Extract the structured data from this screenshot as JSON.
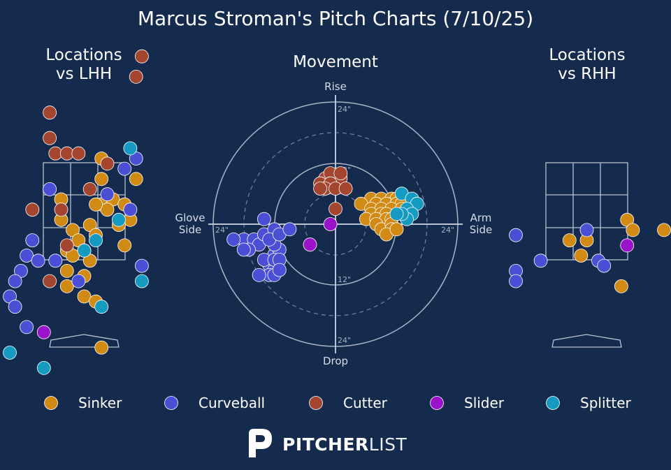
{
  "title": "Marcus Stroman's Pitch Charts (7/10/25)",
  "panels": {
    "lhh_title": "Locations\nvs LHH",
    "movement_title": "Movement",
    "rhh_title": "Locations\nvs RHH"
  },
  "movement_axes": {
    "rise": "Rise",
    "drop": "Drop",
    "glove": "Glove\nSide",
    "arm": "Arm\nSide",
    "ring_labels": {
      "top_outer": "24\"",
      "top_inner": "12\"",
      "bottom_inner": "12\"",
      "bottom_outer": "24\"",
      "left_outer": "24\"",
      "right_outer": "24\""
    }
  },
  "colors": {
    "background": "#152b4d",
    "Sinker": "#d18a14",
    "Curveball": "#4a4fd6",
    "Cutter": "#a3452f",
    "Slider": "#9a12c9",
    "Splitter": "#159bc2"
  },
  "legend": [
    "Sinker",
    "Curveball",
    "Cutter",
    "Slider",
    "Splitter"
  ],
  "brand": {
    "bold": "PITCHER",
    "light": "LIST"
  },
  "chart_data": [
    {
      "type": "scatter",
      "panel": "Locations vs LHH",
      "series": [
        {
          "name": "Sinker",
          "points": [
            [
              -0.4,
              2.6
            ],
            [
              -0.2,
              2.4
            ],
            [
              0.1,
              2.5
            ],
            [
              -0.1,
              2.2
            ],
            [
              0.2,
              2.3
            ],
            [
              -0.3,
              2.0
            ],
            [
              0.0,
              2.0
            ],
            [
              -0.2,
              1.9
            ],
            [
              0.1,
              1.8
            ],
            [
              -0.3,
              1.6
            ],
            [
              0.0,
              1.5
            ],
            [
              -0.3,
              1.3
            ],
            [
              0.0,
              1.1
            ],
            [
              0.3,
              2.9
            ],
            [
              0.5,
              3.0
            ],
            [
              0.7,
              2.9
            ],
            [
              0.8,
              2.6
            ],
            [
              0.6,
              2.5
            ],
            [
              0.7,
              2.1
            ],
            [
              0.4,
              2.8
            ],
            [
              0.2,
              2.9
            ],
            [
              0.9,
              3.4
            ],
            [
              0.3,
              3.4
            ],
            [
              0.3,
              3.8
            ],
            [
              -0.4,
              3.0
            ],
            [
              0.2,
              1.0
            ],
            [
              0.3,
              0.1
            ]
          ]
        },
        {
          "name": "Curveball",
          "points": [
            [
              -0.6,
              3.2
            ],
            [
              -0.9,
              2.2
            ],
            [
              -1.0,
              1.9
            ],
            [
              -0.8,
              1.8
            ],
            [
              -1.1,
              1.6
            ],
            [
              -0.5,
              1.8
            ],
            [
              -1.2,
              1.4
            ],
            [
              -1.4,
              1.1
            ],
            [
              -1.2,
              0.9
            ],
            [
              -1.0,
              0.5
            ],
            [
              -0.1,
              1.4
            ],
            [
              0.4,
              3.1
            ],
            [
              0.7,
              3.6
            ],
            [
              0.9,
              3.8
            ],
            [
              0.8,
              2.8
            ],
            [
              1.0,
              1.7
            ]
          ]
        },
        {
          "name": "Cutter",
          "points": [
            [
              -0.6,
              4.7
            ],
            [
              -0.6,
              4.2
            ],
            [
              -0.5,
              3.9
            ],
            [
              -0.3,
              3.9
            ],
            [
              -0.1,
              3.9
            ],
            [
              0.4,
              3.7
            ],
            [
              -0.9,
              2.8
            ],
            [
              -0.4,
              2.8
            ],
            [
              -0.3,
              2.1
            ],
            [
              0.1,
              3.2
            ],
            [
              0.9,
              5.4
            ],
            [
              1.0,
              5.8
            ],
            [
              -0.6,
              1.4
            ]
          ]
        },
        {
          "name": "Slider",
          "points": [
            [
              -0.7,
              0.4
            ]
          ]
        },
        {
          "name": "Splitter",
          "points": [
            [
              0.0,
              2.0
            ],
            [
              0.2,
              2.2
            ],
            [
              0.6,
              2.6
            ],
            [
              0.8,
              4.0
            ],
            [
              1.0,
              1.4
            ],
            [
              0.3,
              0.9
            ],
            [
              -0.7,
              -0.3
            ],
            [
              -1.8,
              0.0
            ]
          ]
        }
      ]
    },
    {
      "type": "scatter",
      "panel": "Movement",
      "xlabel": "Glove Side / Arm Side",
      "ylabel": "Drop / Rise",
      "series": [
        {
          "name": "Sinker",
          "points": [
            [
              7,
              5
            ],
            [
              9,
              5
            ],
            [
              11,
              5
            ],
            [
              12,
              5
            ],
            [
              8,
              4
            ],
            [
              10,
              4
            ],
            [
              12,
              4
            ],
            [
              13,
              4
            ],
            [
              5,
              4
            ],
            [
              7,
              3
            ],
            [
              9,
              3
            ],
            [
              11,
              3
            ],
            [
              13,
              3
            ],
            [
              7,
              2
            ],
            [
              9,
              2
            ],
            [
              10,
              2
            ],
            [
              12,
              2
            ],
            [
              6,
              1
            ],
            [
              8,
              1
            ],
            [
              10,
              1
            ],
            [
              11,
              1
            ],
            [
              8,
              0
            ],
            [
              9,
              -1
            ],
            [
              11,
              0
            ],
            [
              11,
              -1
            ],
            [
              10,
              -2
            ],
            [
              12,
              -1
            ]
          ]
        },
        {
          "name": "Curveball",
          "points": [
            [
              -14,
              1
            ],
            [
              -18,
              -3
            ],
            [
              -20,
              -3
            ],
            [
              -16,
              -3
            ],
            [
              -15,
              -4
            ],
            [
              -17,
              -5
            ],
            [
              -18,
              -5
            ],
            [
              -14,
              -2
            ],
            [
              -12,
              -1
            ],
            [
              -12,
              -6
            ],
            [
              -13,
              -8
            ],
            [
              -12,
              -9
            ],
            [
              -14,
              -7
            ],
            [
              -11,
              -5
            ],
            [
              -12,
              -4
            ],
            [
              -13,
              -3
            ],
            [
              -11,
              -2
            ],
            [
              -9,
              -1
            ],
            [
              -13,
              -10
            ],
            [
              -12,
              -10
            ],
            [
              -15,
              -10
            ],
            [
              -12,
              -7
            ],
            [
              -11,
              -7
            ],
            [
              -11,
              -9
            ]
          ]
        },
        {
          "name": "Cutter",
          "points": [
            [
              -2,
              9
            ],
            [
              0,
              9
            ],
            [
              1,
              9
            ],
            [
              -1,
              10
            ],
            [
              1,
              10
            ],
            [
              -3,
              8
            ],
            [
              -1,
              8
            ],
            [
              -2,
              7
            ],
            [
              0,
              7
            ],
            [
              -3,
              7
            ],
            [
              2,
              7
            ],
            [
              0,
              3
            ]
          ]
        },
        {
          "name": "Slider",
          "points": [
            [
              -1,
              0
            ],
            [
              -5,
              -4
            ]
          ]
        },
        {
          "name": "Splitter",
          "points": [
            [
              13,
              6
            ],
            [
              15,
              5
            ],
            [
              16,
              4
            ],
            [
              14,
              3
            ],
            [
              15,
              2
            ],
            [
              14,
              1
            ],
            [
              13,
              2
            ],
            [
              12,
              2
            ]
          ]
        }
      ]
    },
    {
      "type": "scatter",
      "panel": "Locations vs RHH",
      "series": [
        {
          "name": "Sinker",
          "points": [
            [
              -0.3,
              2.2
            ],
            [
              0.0,
              2.2
            ],
            [
              -0.1,
              1.9
            ],
            [
              0.7,
              2.6
            ],
            [
              0.8,
              2.4
            ],
            [
              2.1,
              2.4
            ],
            [
              0.6,
              1.3
            ]
          ]
        },
        {
          "name": "Curveball",
          "points": [
            [
              -1.7,
              2.3
            ],
            [
              -0.8,
              1.8
            ],
            [
              0.0,
              2.4
            ],
            [
              0.2,
              1.8
            ],
            [
              0.3,
              1.7
            ],
            [
              -2.2,
              1.6
            ],
            [
              -1.5,
              1.4
            ]
          ]
        },
        {
          "name": "Cutter",
          "points": []
        },
        {
          "name": "Slider",
          "points": [
            [
              0.7,
              2.1
            ]
          ]
        },
        {
          "name": "Splitter",
          "points": []
        }
      ]
    }
  ]
}
